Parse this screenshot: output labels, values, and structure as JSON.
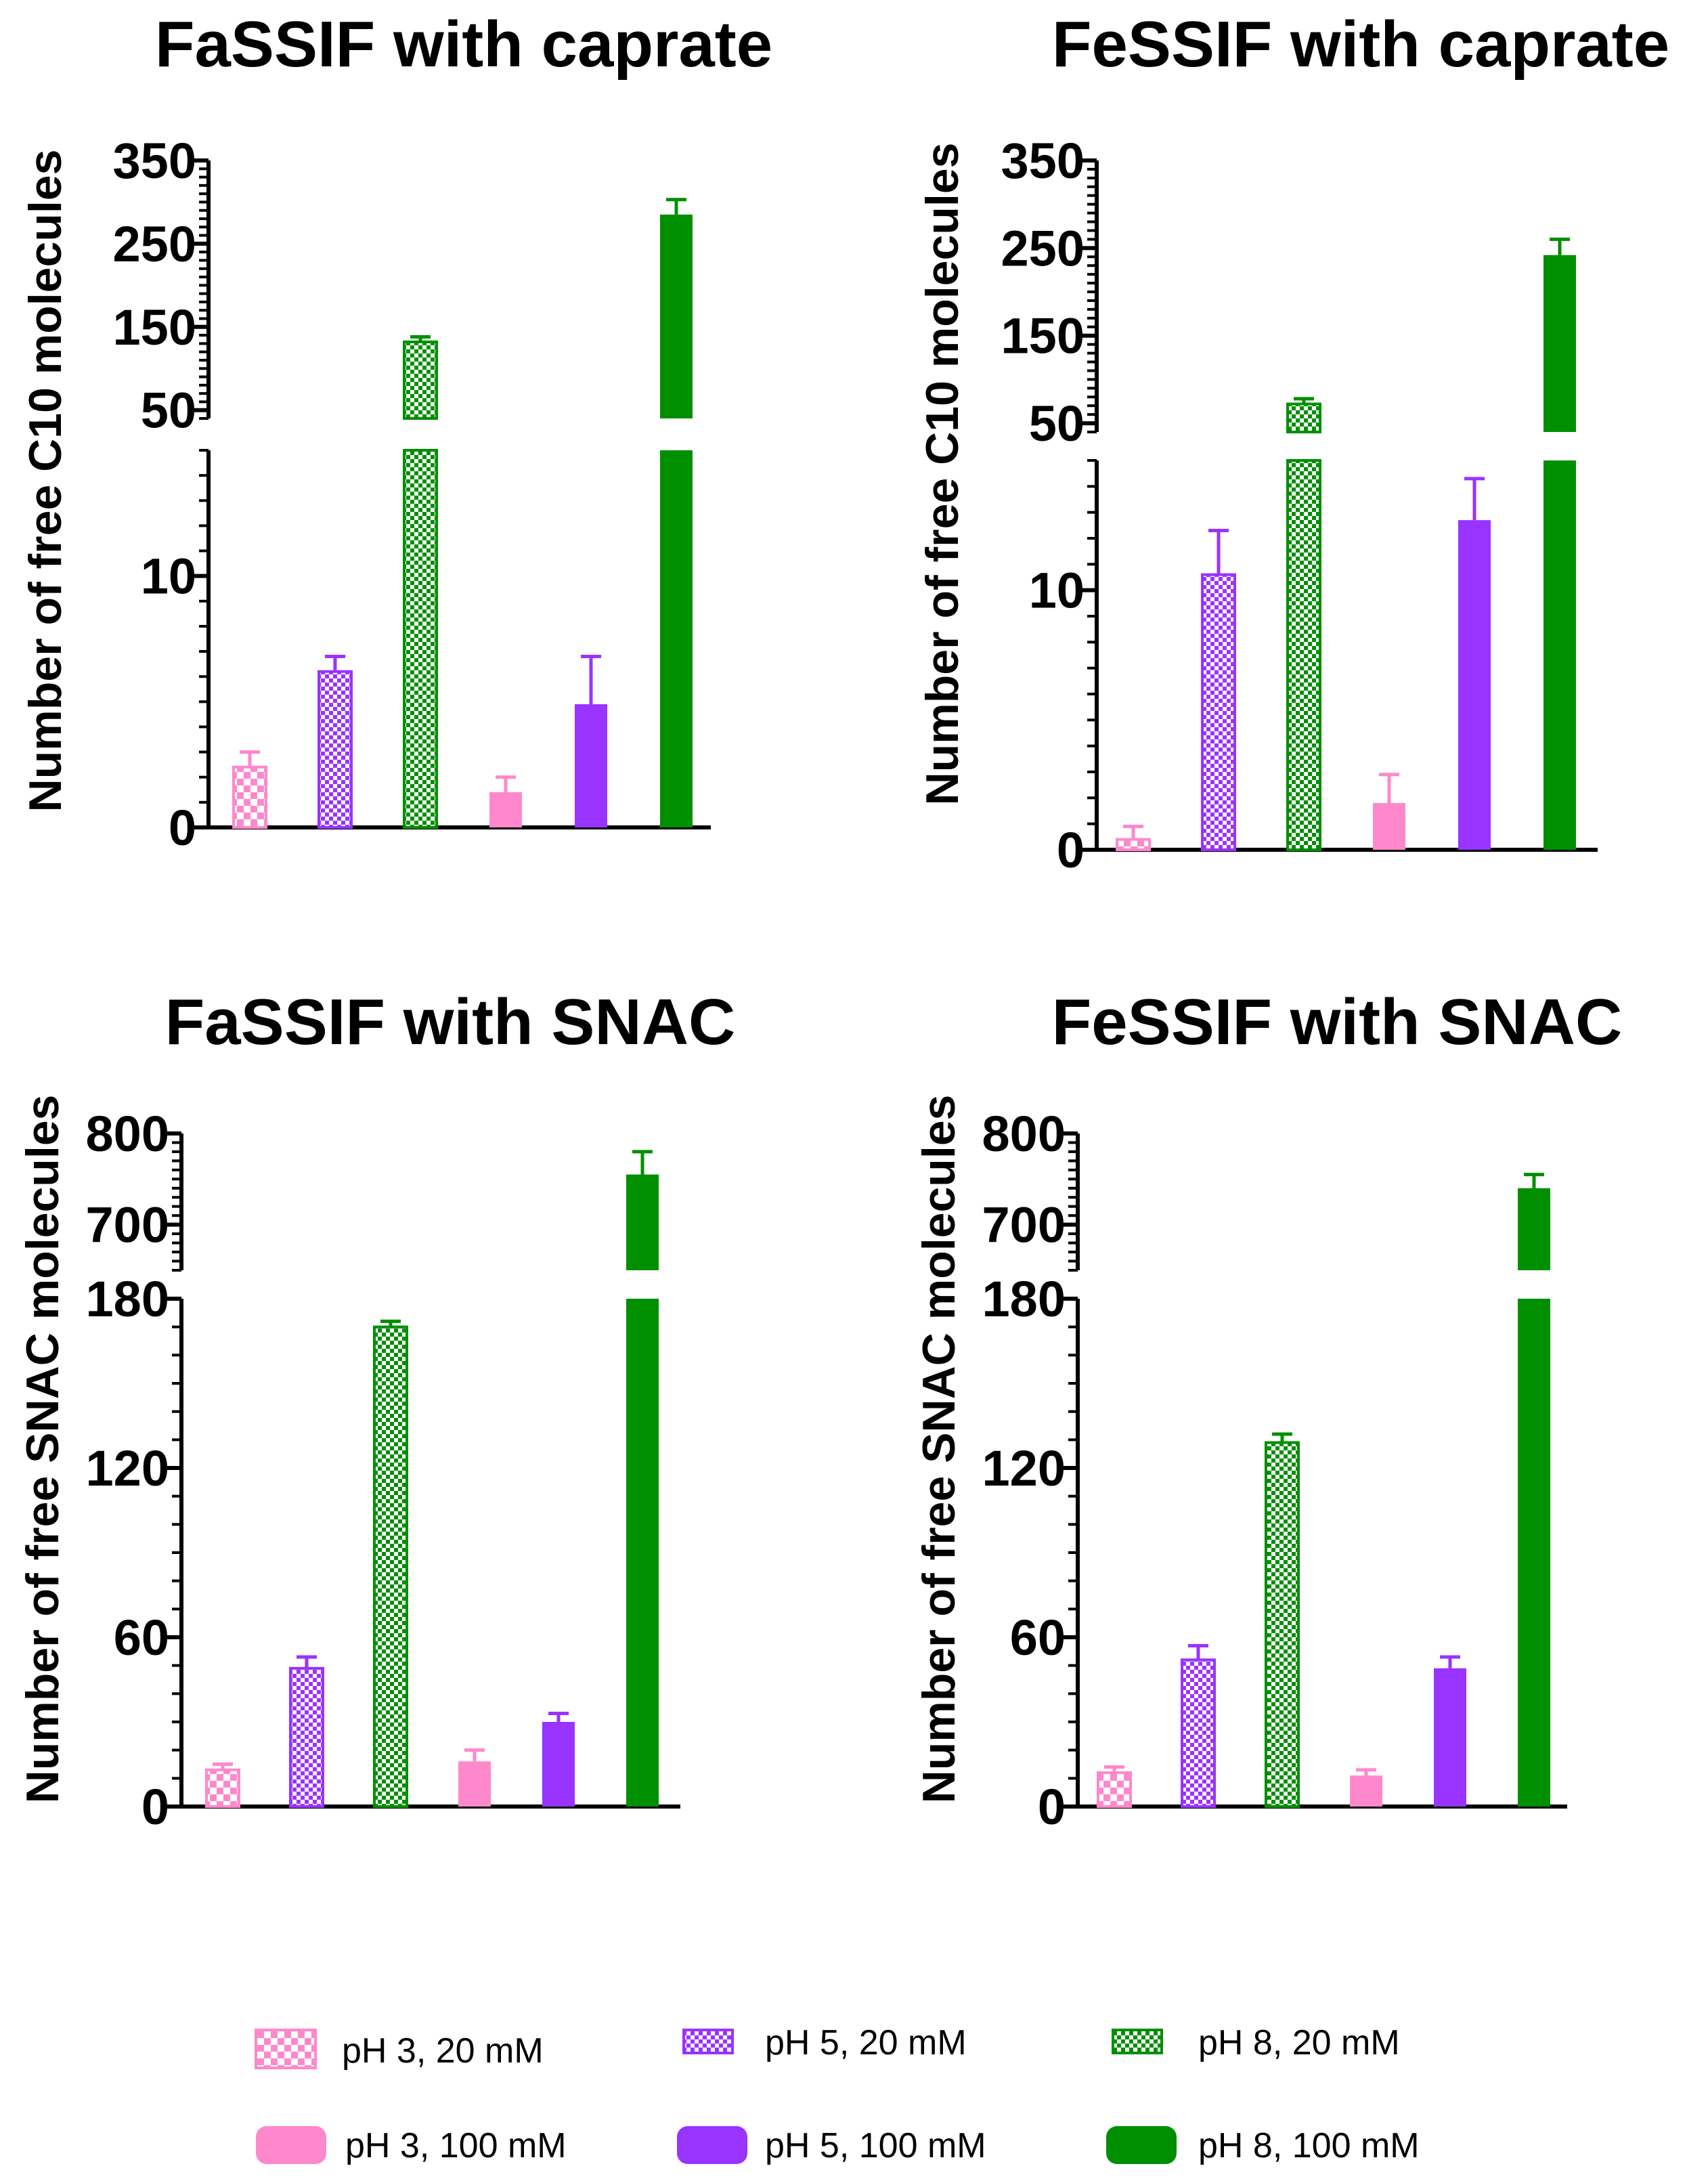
{
  "series": [
    {
      "name": "pH 3, 20 mM",
      "color": "#ff88cc",
      "pattern": "check-light"
    },
    {
      "name": "pH 5, 20 mM",
      "color": "#9933ff",
      "pattern": "check-dense"
    },
    {
      "name": "pH 8, 20 mM",
      "color": "#008f00",
      "pattern": "check-dense"
    },
    {
      "name": "pH 3, 100 mM",
      "color": "#ff88cc",
      "pattern": "solid"
    },
    {
      "name": "pH 5, 100 mM",
      "color": "#9933ff",
      "pattern": "solid"
    },
    {
      "name": "pH 8, 100 mM",
      "color": "#008f00",
      "pattern": "solid"
    }
  ],
  "chart_data": [
    {
      "type": "bar",
      "title": "FaSSIF with caprate",
      "ylabel": "Number of free C10 molecules",
      "categories": [
        "pH 3, 20 mM",
        "pH 5, 20 mM",
        "pH 8, 20 mM",
        "pH 3, 100 mM",
        "pH 5, 100 mM",
        "pH 8, 100 mM"
      ],
      "values": [
        2.4,
        6.2,
        132,
        1.4,
        4.9,
        285
      ],
      "errors": [
        0.6,
        0.6,
        6,
        0.6,
        1.9,
        18
      ],
      "lower_range": [
        0,
        15
      ],
      "lower_ticks": [
        "0",
        "10"
      ],
      "upper_range": [
        40,
        350
      ],
      "upper_ticks": [
        "50",
        "150",
        "250",
        "350"
      ]
    },
    {
      "type": "bar",
      "title": "FeSSIF with caprate",
      "ylabel": "Number of free C10 molecules",
      "categories": [
        "pH 3, 20 mM",
        "pH 5, 20 mM",
        "pH 8, 20 mM",
        "pH 3, 100 mM",
        "pH 5, 100 mM",
        "pH 8, 100 mM"
      ],
      "values": [
        0.4,
        10.6,
        72,
        1.8,
        12.7,
        242
      ],
      "errors": [
        0.5,
        1.7,
        6,
        1.1,
        1.6,
        18
      ],
      "lower_range": [
        0,
        15
      ],
      "lower_ticks": [
        "0",
        "10"
      ],
      "upper_range": [
        40,
        350
      ],
      "upper_ticks": [
        "50",
        "150",
        "250",
        "350"
      ]
    },
    {
      "type": "bar",
      "title": "FaSSIF with SNAC",
      "ylabel": "Number of free SNAC molecules",
      "categories": [
        "pH 3, 20 mM",
        "pH 5, 20 mM",
        "pH 8, 20 mM",
        "pH 3, 100 mM",
        "pH 5, 100 mM",
        "pH 8, 100 mM"
      ],
      "values": [
        13,
        49,
        170,
        16,
        30,
        755
      ],
      "errors": [
        2,
        4,
        2,
        4,
        3,
        25
      ],
      "lower_range": [
        0,
        180
      ],
      "lower_ticks": [
        "0",
        "60",
        "120",
        "180"
      ],
      "upper_range": [
        650,
        800
      ],
      "upper_ticks": [
        "700",
        "800"
      ]
    },
    {
      "type": "bar",
      "title": "FeSSIF with SNAC",
      "ylabel": "Number of free SNAC molecules",
      "categories": [
        "pH 3, 20 mM",
        "pH 5, 20 mM",
        "pH 8, 20 mM",
        "pH 3, 100 mM",
        "pH 5, 100 mM",
        "pH 8, 100 mM"
      ],
      "values": [
        12,
        52,
        129,
        11,
        49,
        740
      ],
      "errors": [
        2,
        5,
        3,
        2,
        4,
        15
      ],
      "lower_range": [
        0,
        180
      ],
      "lower_ticks": [
        "0",
        "60",
        "120",
        "180"
      ],
      "upper_range": [
        650,
        800
      ],
      "upper_ticks": [
        "700",
        "800"
      ]
    }
  ]
}
